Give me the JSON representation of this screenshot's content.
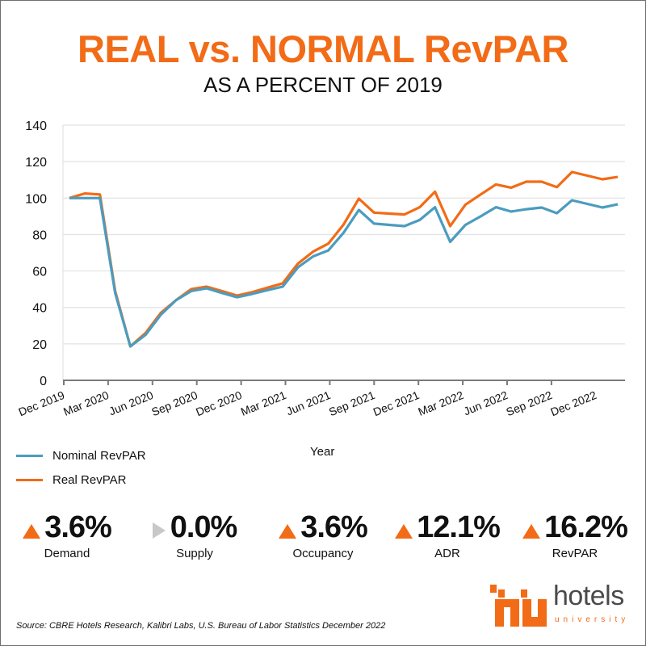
{
  "header": {
    "title": "REAL vs. NORMAL RevPAR",
    "subtitle": "AS A PERCENT OF 2019"
  },
  "colors": {
    "nominal": "#4b9cbf",
    "real": "#f26b16",
    "accent": "#f26b16",
    "neutral_arrow": "#c8c8c8"
  },
  "chart_data": {
    "type": "line",
    "title": "REAL vs. NORMAL RevPAR",
    "subtitle": "AS A PERCENT OF 2019",
    "xlabel": "Year",
    "ylabel": "",
    "ylim": [
      0,
      140
    ],
    "yticks": [
      0,
      20,
      40,
      60,
      80,
      100,
      120,
      140
    ],
    "grid": true,
    "legend_position": "bottom-left",
    "x_tick_labels": [
      "Dec 2019",
      "Mar 2020",
      "Jun 2020",
      "Sep 2020",
      "Dec 2020",
      "Mar 2021",
      "Jun 2021",
      "Sep 2021",
      "Dec 2021",
      "Mar 2022",
      "Jun 2022",
      "Sep 2022",
      "Dec 2022"
    ],
    "x": [
      "Dec 2019",
      "Jan 2020",
      "Feb 2020",
      "Mar 2020",
      "Apr 2020",
      "May 2020",
      "Jun 2020",
      "Jul 2020",
      "Aug 2020",
      "Sep 2020",
      "Oct 2020",
      "Nov 2020",
      "Dec 2020",
      "Jan 2021",
      "Feb 2021",
      "Mar 2021",
      "Apr 2021",
      "May 2021",
      "Jun 2021",
      "Jul 2021",
      "Aug 2021",
      "Sep 2021",
      "Oct 2021",
      "Nov 2021",
      "Dec 2021",
      "Jan 2022",
      "Feb 2022",
      "Mar 2022",
      "Apr 2022",
      "May 2022",
      "Jun 2022",
      "Jul 2022",
      "Aug 2022",
      "Sep 2022",
      "Oct 2022",
      "Nov 2022",
      "Dec 2022"
    ],
    "series": [
      {
        "name": "Nominal RevPAR",
        "values": [
          100,
          100,
          100,
          48,
          18.6,
          25,
          36,
          44,
          49,
          50.5,
          48,
          45.6,
          47.4,
          49.5,
          51.4,
          62,
          68,
          71.3,
          81,
          93.5,
          86,
          85.3,
          84.6,
          88,
          95,
          76,
          85.3,
          90,
          95,
          92.6,
          93.9,
          94.8,
          91.7,
          98.8,
          96.8,
          94.8,
          96.6
        ]
      },
      {
        "name": "Real RevPAR",
        "values": [
          100,
          102.5,
          102,
          49,
          18.6,
          26,
          37,
          44,
          50,
          51.4,
          49,
          46.5,
          48.4,
          50.8,
          53.2,
          64,
          70.6,
          75,
          85.5,
          99.7,
          92,
          91.5,
          91,
          95,
          103.5,
          84.6,
          96.4,
          102,
          107.5,
          105.7,
          109,
          109,
          106,
          114.3,
          112.3,
          110.3,
          111.6
        ]
      }
    ]
  },
  "legend": {
    "items": [
      {
        "label": "Nominal RevPAR"
      },
      {
        "label": "Real RevPAR"
      }
    ]
  },
  "axis": {
    "x_title": "Year"
  },
  "stats": [
    {
      "value": "3.6%",
      "label": "Demand",
      "direction": "up"
    },
    {
      "value": "0.0%",
      "label": "Supply",
      "direction": "flat"
    },
    {
      "value": "3.6%",
      "label": "Occupancy",
      "direction": "up"
    },
    {
      "value": "12.1%",
      "label": "ADR",
      "direction": "up"
    },
    {
      "value": "16.2%",
      "label": "RevPAR",
      "direction": "up"
    }
  ],
  "footer": {
    "source": "Source: CBRE Hotels Research, Kalibri Labs, U.S. Bureau of Labor Statistics December 2022",
    "logo_text": "hotels",
    "logo_sub": "university"
  }
}
